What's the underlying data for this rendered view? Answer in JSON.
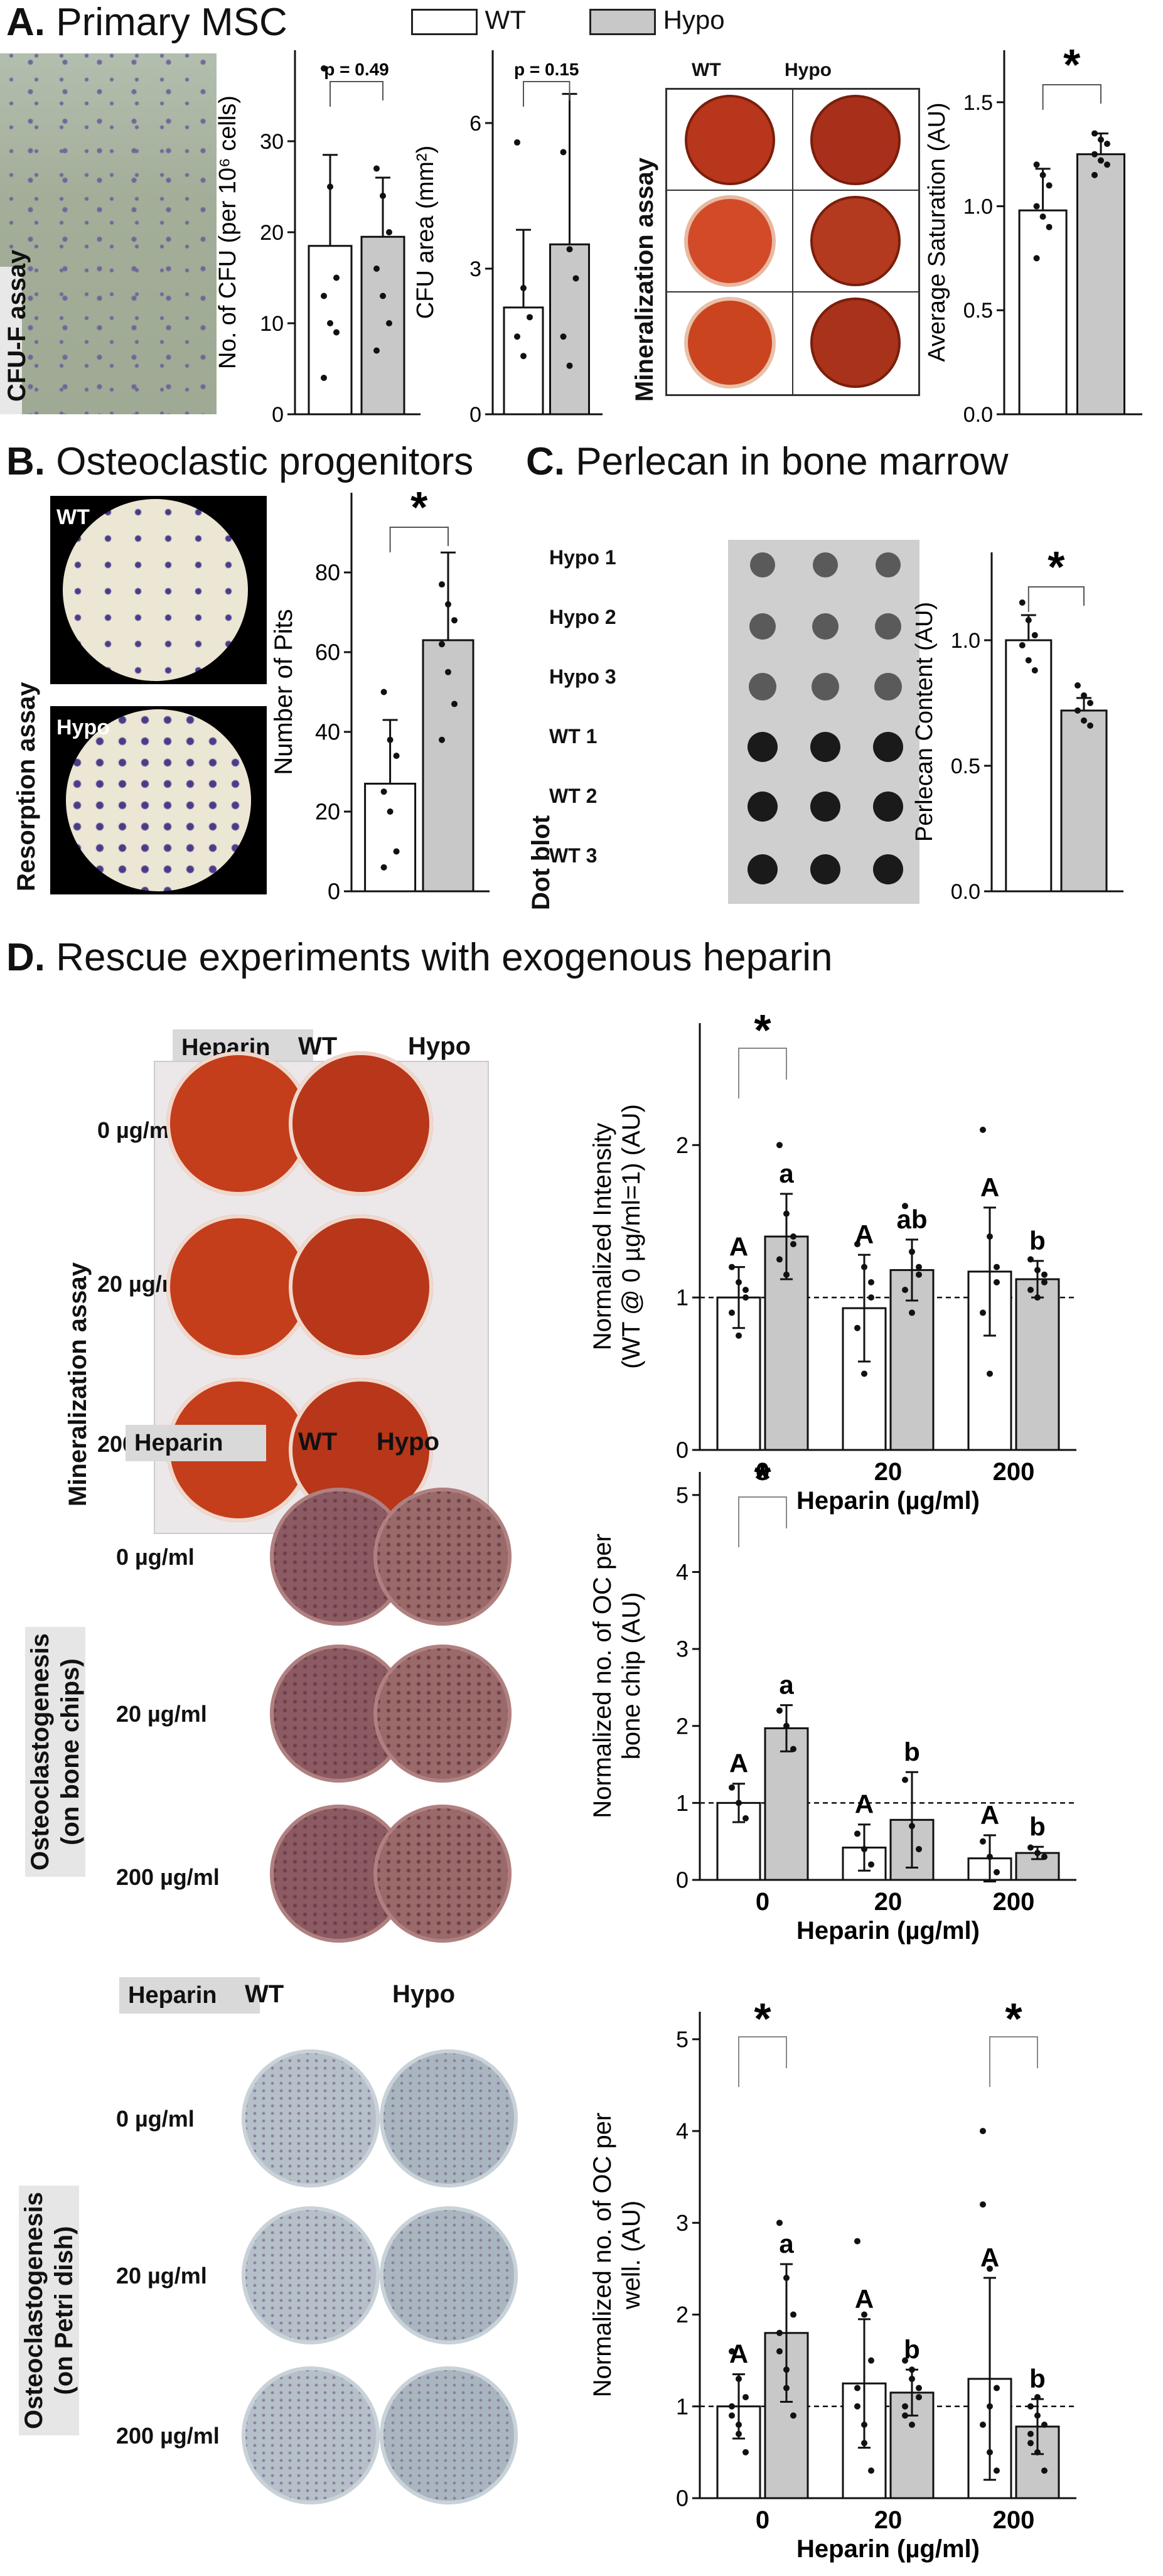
{
  "legend": {
    "wt": "WT",
    "hypo": "Hypo"
  },
  "sections": {
    "A": {
      "letter": "A.",
      "title": "Primary MSC"
    },
    "B": {
      "letter": "B.",
      "title": "Osteoclastic progenitors"
    },
    "C": {
      "letter": "C.",
      "title": "Perlecan in bone marrow"
    },
    "D": {
      "letter": "D.",
      "title": "Rescue experiments with exogenous heparin"
    }
  },
  "images": {
    "cfu_label": "CFU-F assay",
    "mineral_label": "Mineralization assay",
    "mineral_wt": "WT",
    "mineral_hypo": "Hypo",
    "resorption_label": "Resorption assay",
    "resorption_wt": "WT",
    "resorption_hypo": "Hypo",
    "dotblot_label": "Dot blot",
    "dotblot_rows": [
      "Hypo 1",
      "Hypo 2",
      "Hypo 3",
      "WT 1",
      "WT 2",
      "WT 3"
    ],
    "d1_side": "Mineralization assay",
    "d2_side": "Osteoclastogenesis\n(on bone chips)",
    "d3_side": "Osteoclastogenesis\n(on Petri dish)",
    "heparin": "Heparin",
    "wt": "WT",
    "hypo": "Hypo",
    "doses": [
      "0 µg/ml",
      "20 µg/ml",
      "200 µg/ml"
    ]
  },
  "colors": {
    "wt": "#ffffff",
    "hypo": "#c8c8c8",
    "stroke": "#111111",
    "mineral": "#c0391b",
    "cfu_bg": "#a8b4a0",
    "pit_bg": "#ece6d4",
    "stain": "#4b3c8a"
  },
  "chart_data": [
    {
      "id": "cfu_no",
      "type": "bar",
      "ylabel": "No. of CFU (per 10⁶ cells)",
      "ylim": [
        0,
        40
      ],
      "yticks": [
        0,
        10,
        20,
        30
      ],
      "annotation": "p = 0.49",
      "categories": [
        "WT",
        "Hypo"
      ],
      "values": [
        18.5,
        19.5
      ],
      "errors": [
        10,
        6.5
      ],
      "points": [
        [
          38,
          25,
          15,
          13,
          10,
          9,
          4
        ],
        [
          27,
          24,
          20,
          16,
          13,
          10,
          7
        ]
      ]
    },
    {
      "id": "cfu_area",
      "type": "bar",
      "ylabel": "CFU area (mm²)",
      "ylim": [
        0,
        7.5
      ],
      "yticks": [
        0,
        3,
        6
      ],
      "annotation": "p = 0.15",
      "categories": [
        "WT",
        "Hypo"
      ],
      "values": [
        2.2,
        3.5
      ],
      "errors": [
        1.6,
        3.1
      ],
      "points": [
        [
          5.6,
          2.6,
          2.0,
          1.6,
          1.2
        ],
        [
          5.4,
          3.4,
          2.8,
          1.6,
          1.0
        ]
      ]
    },
    {
      "id": "mineral_sat",
      "type": "bar",
      "ylabel": "Average Saturation (AU)",
      "ylim": [
        0,
        1.75
      ],
      "yticks": [
        0.0,
        0.5,
        1.0,
        1.5
      ],
      "annotation": "*",
      "categories": [
        "WT",
        "Hypo"
      ],
      "values": [
        0.98,
        1.25
      ],
      "errors": [
        0.2,
        0.1
      ],
      "points": [
        [
          1.2,
          1.15,
          1.1,
          1.0,
          0.95,
          0.9,
          0.75
        ],
        [
          1.35,
          1.32,
          1.3,
          1.25,
          1.22,
          1.2,
          1.15
        ]
      ]
    },
    {
      "id": "pits",
      "type": "bar",
      "ylabel": "Number of Pits",
      "ylim": [
        0,
        100
      ],
      "yticks": [
        0,
        20,
        40,
        60,
        80
      ],
      "annotation": "*",
      "categories": [
        "WT",
        "Hypo"
      ],
      "values": [
        27,
        63
      ],
      "errors": [
        16,
        22
      ],
      "points": [
        [
          50,
          38,
          34,
          25,
          20,
          10,
          6
        ],
        [
          77,
          72,
          68,
          62,
          55,
          47,
          38
        ]
      ]
    },
    {
      "id": "perlecan",
      "type": "bar",
      "ylabel": "Perlecan Content (AU)",
      "ylim": [
        0,
        1.35
      ],
      "yticks": [
        0.0,
        0.5,
        1.0
      ],
      "annotation": "*",
      "categories": [
        "WT",
        "Hypo"
      ],
      "values": [
        1.0,
        0.72
      ],
      "errors": [
        0.1,
        0.05
      ],
      "points": [
        [
          1.15,
          1.08,
          1.02,
          0.98,
          0.92,
          0.88
        ],
        [
          0.82,
          0.78,
          0.75,
          0.72,
          0.68,
          0.66
        ]
      ]
    },
    {
      "id": "d_mineral",
      "type": "bar",
      "ylabel": "Normalized Intensity\n(WT @ 0 µg/ml=1) (AU)",
      "xlabel": "Heparin (µg/ml)",
      "ylim": [
        0,
        2.8
      ],
      "yticks": [
        0,
        1,
        2
      ],
      "categories": [
        "0",
        "20",
        "200"
      ],
      "refline": 1,
      "series": [
        {
          "name": "WT",
          "values": [
            1.0,
            0.93,
            1.17
          ],
          "errors": [
            0.2,
            0.35,
            0.42
          ],
          "letters": [
            "A",
            "A",
            "A"
          ]
        },
        {
          "name": "Hypo",
          "values": [
            1.4,
            1.18,
            1.12
          ],
          "errors": [
            0.28,
            0.2,
            0.12
          ],
          "letters": [
            "a",
            "ab",
            "b"
          ]
        }
      ],
      "points": [
        [
          [
            1.2,
            1.1,
            1.0,
            0.9,
            0.75,
            1.05
          ],
          [
            2.0,
            1.55,
            1.35,
            1.25,
            1.15,
            1.4
          ]
        ],
        [
          [
            1.35,
            1.2,
            1.1,
            0.8,
            0.5,
            1.0
          ],
          [
            1.6,
            1.3,
            1.15,
            1.05,
            0.9,
            1.2
          ]
        ],
        [
          [
            2.1,
            1.4,
            1.2,
            0.9,
            0.5,
            1.1
          ],
          [
            1.25,
            1.18,
            1.1,
            1.05,
            1.0,
            1.15
          ]
        ]
      ],
      "significance": [
        {
          "group": 0,
          "label": "*"
        }
      ]
    },
    {
      "id": "d_chips",
      "type": "bar",
      "ylabel": "Normalized no. of OC per\nbone chip (AU)",
      "xlabel": "Heparin (µg/ml)",
      "ylim": [
        0,
        5.3
      ],
      "yticks": [
        0,
        1,
        2,
        3,
        4,
        5
      ],
      "categories": [
        "0",
        "20",
        "200"
      ],
      "refline": 1,
      "series": [
        {
          "name": "WT",
          "values": [
            1.0,
            0.42,
            0.28
          ],
          "errors": [
            0.25,
            0.3,
            0.3
          ],
          "letters": [
            "A",
            "A",
            "A"
          ]
        },
        {
          "name": "Hypo",
          "values": [
            1.97,
            0.78,
            0.35
          ],
          "errors": [
            0.3,
            0.62,
            0.08
          ],
          "letters": [
            "a",
            "b",
            "b"
          ]
        }
      ],
      "points": [
        [
          [
            1.2,
            1.0,
            0.8
          ],
          [
            2.2,
            2.0,
            1.7
          ]
        ],
        [
          [
            0.6,
            0.4,
            0.2
          ],
          [
            1.3,
            0.7,
            0.4
          ]
        ],
        [
          [
            0.5,
            0.3,
            0.1
          ],
          [
            0.42,
            0.35,
            0.3
          ]
        ]
      ],
      "significance": [
        {
          "group": 0,
          "label": "*"
        }
      ]
    },
    {
      "id": "d_petri",
      "type": "bar",
      "ylabel": "Normalized no. of OC per\nwell. (AU)",
      "xlabel": "Heparin (µg/ml)",
      "ylim": [
        0,
        5.3
      ],
      "yticks": [
        0,
        1,
        2,
        3,
        4,
        5
      ],
      "categories": [
        "0",
        "20",
        "200"
      ],
      "refline": 1,
      "series": [
        {
          "name": "WT",
          "values": [
            1.0,
            1.25,
            1.3
          ],
          "errors": [
            0.35,
            0.7,
            1.1
          ],
          "letters": [
            "A",
            "A",
            "A"
          ]
        },
        {
          "name": "Hypo",
          "values": [
            1.8,
            1.15,
            0.78
          ],
          "errors": [
            0.75,
            0.25,
            0.3
          ],
          "letters": [
            "a",
            "b",
            "b"
          ]
        }
      ],
      "points": [
        [
          [
            1.6,
            1.3,
            1.1,
            0.9,
            0.7,
            0.5,
            1.0,
            0.8
          ],
          [
            3.0,
            2.4,
            2.0,
            1.6,
            1.2,
            0.9,
            1.8,
            1.4
          ]
        ],
        [
          [
            2.8,
            2.0,
            1.5,
            1.0,
            0.6,
            0.3,
            1.2,
            0.8
          ],
          [
            1.5,
            1.3,
            1.1,
            1.0,
            0.8,
            1.2,
            0.9,
            1.4
          ]
        ],
        [
          [
            3.2,
            2.5,
            1.2,
            0.8,
            0.5,
            0.3,
            4.0,
            1.0
          ],
          [
            1.0,
            0.9,
            0.8,
            0.6,
            0.5,
            0.3,
            0.7,
            1.1
          ]
        ]
      ],
      "significance": [
        {
          "group": 0,
          "label": "*"
        },
        {
          "group": 2,
          "label": "*"
        }
      ]
    }
  ]
}
